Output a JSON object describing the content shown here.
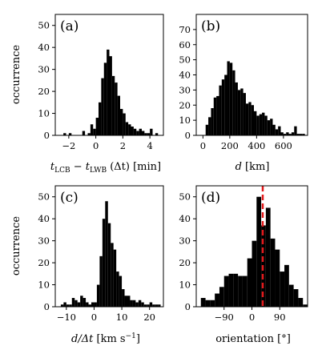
{
  "chart_data": [
    {
      "type": "bar",
      "panel_label": "(a)",
      "ylabel": "occurrence",
      "xlabel": "",
      "xlim": [
        -3,
        5
      ],
      "ylim": [
        0,
        55
      ],
      "xticks": [
        -2,
        0,
        2,
        4
      ],
      "xtick_labels": [
        "−2",
        "0",
        "2",
        "4"
      ],
      "yticks": [
        0,
        10,
        20,
        30,
        40,
        50
      ],
      "bin_width": 0.2,
      "bin_starts": [
        -2.4,
        -2.0,
        -1.0,
        -0.6,
        -0.4,
        -0.2,
        0.0,
        0.2,
        0.4,
        0.6,
        0.8,
        1.0,
        1.2,
        1.4,
        1.6,
        1.8,
        2.0,
        2.2,
        2.4,
        2.6,
        2.8,
        3.0,
        3.2,
        3.4,
        3.6,
        3.8,
        4.0,
        4.4
      ],
      "values": [
        1,
        1,
        2,
        1,
        5,
        3,
        8,
        15,
        26,
        33,
        39,
        36,
        27,
        24,
        18,
        12,
        10,
        6,
        5,
        4,
        3,
        2,
        3,
        2,
        1,
        1,
        3,
        1
      ],
      "color": "#000000"
    },
    {
      "type": "bar",
      "panel_label": "(b)",
      "ylabel": "",
      "xlabel": "",
      "xlim": [
        -50,
        780
      ],
      "ylim": [
        0,
        80
      ],
      "xticks": [
        0,
        200,
        400,
        600
      ],
      "xtick_labels": [
        "0",
        "200",
        "400",
        "600"
      ],
      "yticks": [
        0,
        10,
        20,
        30,
        40,
        50,
        60,
        70
      ],
      "bin_width": 20,
      "bin_starts": [
        20,
        40,
        60,
        80,
        100,
        120,
        140,
        160,
        180,
        200,
        220,
        240,
        260,
        280,
        300,
        320,
        340,
        360,
        380,
        400,
        420,
        440,
        460,
        480,
        500,
        520,
        540,
        560,
        580,
        600,
        620,
        640,
        660,
        680,
        700,
        720,
        740
      ],
      "values": [
        7,
        12,
        18,
        25,
        26,
        33,
        37,
        40,
        49,
        48,
        43,
        35,
        30,
        31,
        28,
        21,
        22,
        20,
        16,
        13,
        14,
        15,
        13,
        10,
        11,
        7,
        4,
        6,
        2,
        1,
        2,
        1,
        2,
        6,
        1,
        1,
        1
      ],
      "color": "#000000"
    },
    {
      "type": "bar",
      "panel_label": "(c)",
      "ylabel": "occurrence",
      "xlabel": "",
      "xlim": [
        -14,
        25
      ],
      "ylim": [
        0,
        55
      ],
      "xticks": [
        -10,
        0,
        10,
        20
      ],
      "xtick_labels": [
        "−10",
        "0",
        "10",
        "20"
      ],
      "yticks": [
        0,
        10,
        20,
        30,
        40,
        50
      ],
      "bin_width": 1,
      "bin_starts": [
        -12,
        -11,
        -10,
        -9,
        -8,
        -7,
        -6,
        -5,
        -4,
        -3,
        -2,
        -1,
        0,
        1,
        2,
        3,
        4,
        5,
        6,
        7,
        8,
        9,
        10,
        11,
        12,
        13,
        14,
        15,
        16,
        17,
        18,
        19,
        20,
        21,
        22,
        23
      ],
      "values": [
        1,
        2,
        1,
        1,
        4,
        3,
        2,
        5,
        4,
        2,
        1,
        2,
        2,
        10,
        23,
        40,
        48,
        38,
        29,
        26,
        16,
        14,
        8,
        5,
        5,
        3,
        3,
        2,
        3,
        2,
        1,
        1,
        2,
        1,
        1,
        1
      ],
      "color": "#000000"
    },
    {
      "type": "bar",
      "panel_label": "(d)",
      "ylabel": "",
      "xlabel": "",
      "xlim": [
        -180,
        180
      ],
      "ylim": [
        0,
        55
      ],
      "xticks": [
        -90,
        0,
        90
      ],
      "xtick_labels": [
        "−90",
        "0",
        "90"
      ],
      "yticks": [
        0,
        10,
        20,
        30,
        40,
        50
      ],
      "bin_width": 15,
      "bin_starts": [
        -165,
        -150,
        -135,
        -120,
        -105,
        -90,
        -75,
        -60,
        -45,
        -30,
        -15,
        0,
        15,
        30,
        45,
        60,
        75,
        90,
        105,
        120,
        135,
        150,
        165
      ],
      "values": [
        4,
        3,
        3,
        6,
        9,
        14,
        15,
        15,
        14,
        14,
        22,
        30,
        50,
        37,
        45,
        31,
        26,
        16,
        19,
        10,
        8,
        4,
        1
      ],
      "reference_line": {
        "x": 35,
        "color": "#e31a1c",
        "style": "dashed"
      },
      "color": "#000000"
    }
  ],
  "texts": {
    "a_xlabel": "t",
    "a_sub1": "LCB",
    "a_minus": " − ",
    "a_t2": "t",
    "a_sub2": "LWB",
    "a_rest": " (Δt) [min]",
    "b_xlabel_var": "d",
    "b_xlabel_unit": " [km]",
    "c_xlabel_var": "d/Δt",
    "c_xlabel_unit": " [km s",
    "c_xlabel_exp": "−1",
    "c_xlabel_close": "]",
    "d_xlabel": "orientation [°]"
  }
}
